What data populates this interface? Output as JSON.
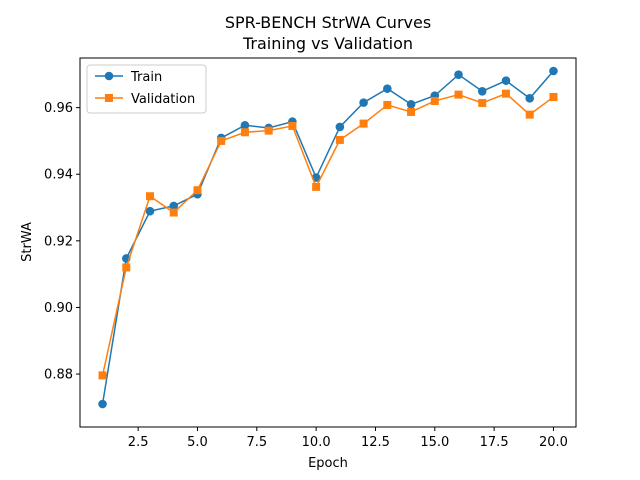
{
  "chart_data": {
    "type": "line",
    "title": "SPR-BENCH StrWA Curves",
    "subtitle": "Training vs Validation",
    "xlabel": "Epoch",
    "ylabel": "StrWA",
    "xlim": [
      0.05,
      20.95
    ],
    "ylim": [
      0.8641,
      0.9749
    ],
    "x_ticks": [
      2.5,
      5.0,
      7.5,
      10.0,
      12.5,
      15.0,
      17.5,
      20.0
    ],
    "x_tick_labels": [
      "2.5",
      "5.0",
      "7.5",
      "10.0",
      "12.5",
      "15.0",
      "17.5",
      "20.0"
    ],
    "y_ticks": [
      0.88,
      0.9,
      0.92,
      0.94,
      0.96
    ],
    "y_tick_labels": [
      "0.88",
      "0.90",
      "0.92",
      "0.94",
      "0.96"
    ],
    "grid": false,
    "legend_position": "top-left",
    "x": [
      1,
      2,
      3,
      4,
      5,
      6,
      7,
      8,
      9,
      10,
      11,
      12,
      13,
      14,
      15,
      16,
      17,
      18,
      19,
      20
    ],
    "series": [
      {
        "name": "Train",
        "color": "#1f77b4",
        "marker": "circle",
        "values": [
          0.871,
          0.9147,
          0.9289,
          0.9305,
          0.934,
          0.9509,
          0.9547,
          0.9539,
          0.9558,
          0.939,
          0.9542,
          0.9615,
          0.9657,
          0.961,
          0.9636,
          0.9699,
          0.9649,
          0.9681,
          0.9628,
          0.971
        ]
      },
      {
        "name": "Validation",
        "color": "#ff7f0e",
        "marker": "square",
        "values": [
          0.8796,
          0.912,
          0.9334,
          0.9285,
          0.9352,
          0.95,
          0.9526,
          0.9531,
          0.9545,
          0.9362,
          0.9503,
          0.9552,
          0.9608,
          0.9587,
          0.962,
          0.9639,
          0.9614,
          0.9642,
          0.9579,
          0.9632
        ]
      }
    ]
  }
}
